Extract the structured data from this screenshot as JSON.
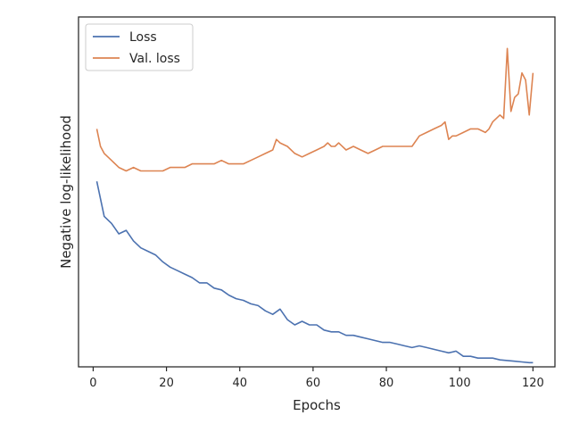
{
  "chart_data": {
    "type": "line",
    "xlabel": "Epochs",
    "ylabel": "Negative log-likelihood",
    "xlim": [
      -4,
      126
    ],
    "ylim": [
      0,
      100
    ],
    "x_ticks": [
      0,
      20,
      40,
      60,
      80,
      100,
      120
    ],
    "y_ticks_shown": false,
    "grid": false,
    "legend_position": "top-left",
    "series": [
      {
        "name": "Loss",
        "color": "#4c72b0",
        "x": [
          1,
          3,
          5,
          7,
          9,
          11,
          13,
          15,
          17,
          19,
          21,
          23,
          25,
          27,
          29,
          31,
          33,
          35,
          37,
          39,
          41,
          43,
          45,
          47,
          49,
          51,
          53,
          55,
          57,
          59,
          61,
          63,
          65,
          67,
          69,
          71,
          73,
          75,
          77,
          79,
          81,
          83,
          85,
          87,
          89,
          91,
          93,
          95,
          97,
          99,
          101,
          103,
          105,
          107,
          109,
          111,
          113,
          115,
          117,
          119,
          120
        ],
        "values": [
          53,
          43,
          41,
          38,
          39,
          36,
          34,
          33,
          32,
          30,
          28.5,
          27.5,
          26.5,
          25.5,
          24,
          24,
          22.5,
          22,
          20.5,
          19.5,
          19,
          18,
          17.5,
          16,
          15,
          16.5,
          13.5,
          12,
          13,
          12,
          12,
          10.5,
          10,
          10,
          9,
          9,
          8.5,
          8,
          7.5,
          7,
          7,
          6.5,
          6,
          5.5,
          6,
          5.5,
          5,
          4.5,
          4,
          4.5,
          3,
          3,
          2.5,
          2.5,
          2.5,
          2,
          1.8,
          1.6,
          1.4,
          1.2,
          1.2
        ]
      },
      {
        "name": "Val. loss",
        "color": "#dd8452",
        "x": [
          1,
          2,
          3,
          5,
          7,
          9,
          11,
          13,
          15,
          17,
          19,
          21,
          23,
          25,
          27,
          29,
          31,
          33,
          35,
          37,
          39,
          41,
          43,
          45,
          47,
          49,
          50,
          51,
          53,
          55,
          57,
          59,
          61,
          63,
          64,
          65,
          66,
          67,
          69,
          71,
          73,
          75,
          77,
          79,
          81,
          83,
          85,
          87,
          89,
          91,
          93,
          95,
          96,
          97,
          98,
          99,
          101,
          103,
          105,
          107,
          108,
          109,
          111,
          112,
          113,
          114,
          115,
          116,
          117,
          118,
          119,
          120
        ],
        "values": [
          68,
          63,
          61,
          59,
          57,
          56,
          57,
          56,
          56,
          56,
          56,
          57,
          57,
          57,
          58,
          58,
          58,
          58,
          59,
          58,
          58,
          58,
          59,
          60,
          61,
          62,
          65,
          64,
          63,
          61,
          60,
          61,
          62,
          63,
          64,
          63,
          63,
          64,
          62,
          63,
          62,
          61,
          62,
          63,
          63,
          63,
          63,
          63,
          66,
          67,
          68,
          69,
          70,
          65,
          66,
          66,
          67,
          68,
          68,
          67,
          68,
          70,
          72,
          71,
          91,
          73,
          77,
          78,
          84,
          82,
          72,
          84
        ]
      }
    ]
  }
}
